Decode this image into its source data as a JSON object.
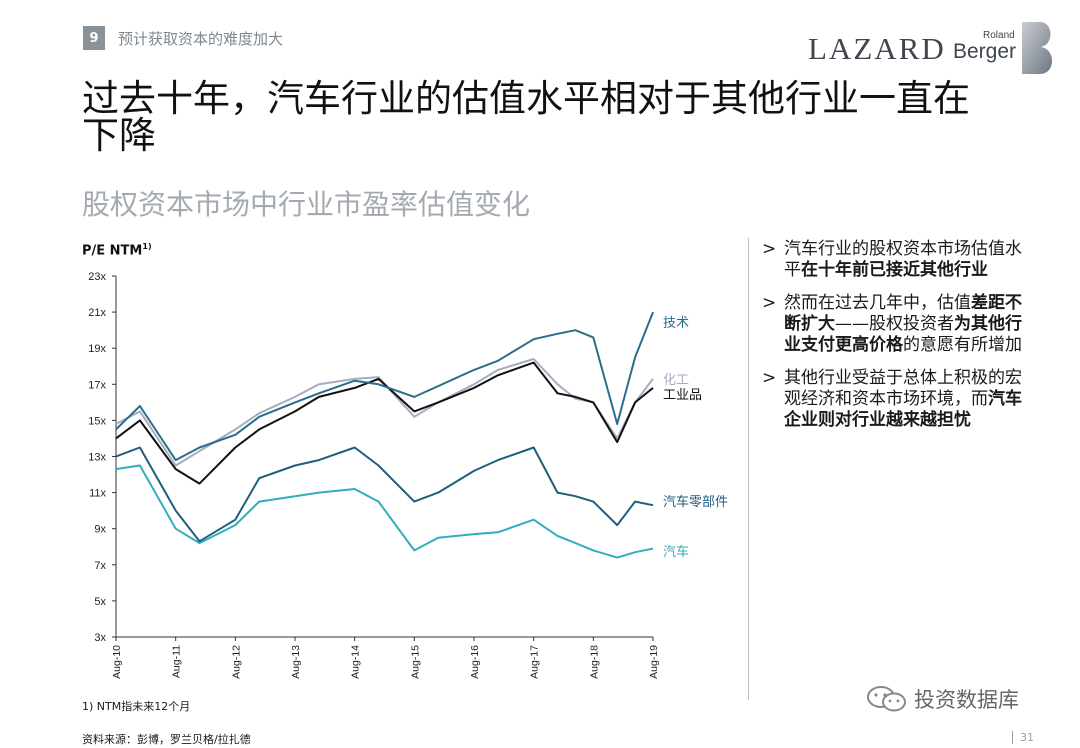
{
  "header": {
    "section_number": "9",
    "section_title": "预计获取资本的难度加大",
    "logo_lazard": "LAZARD",
    "logo_berger": "Berger",
    "logo_roland": "Roland"
  },
  "title": "过去十年，汽车行业的估值水平相对于其他行业一直在下降",
  "subtitle": "股权资本市场中行业市盈率估值变化",
  "bullets": [
    {
      "pre": "汽车行业的股权资本市场估值水平",
      "bold": "在十年前已接近其他行业",
      "post": ""
    },
    {
      "pre": "然而在过去几年中，估值",
      "bold": "差距不断扩大",
      "mid": "——股权投资者",
      "bold2": "为其他行业支付更高价格",
      "post": "的意愿有所增加"
    },
    {
      "pre": "其他行业受益于总体上积极的宏观经济和资本市场环境，而",
      "bold": "汽车企业则对行业越来越担忧",
      "post": ""
    }
  ],
  "footnote": "1) NTM指未来12个月",
  "source": "资料来源：彭博，罗兰贝格/拉扎德",
  "page_number": "31",
  "watermark": "投资数据库",
  "colors": {
    "tech": "#2d6c8b",
    "chem": "#a3aec0",
    "industrial": "#111111",
    "components": "#1f5f7e",
    "auto": "#31aebd",
    "axis": "#333333"
  },
  "chart_data": {
    "type": "line",
    "title": "",
    "ylabel": "P/E NTM",
    "ylabel_sup": "1)",
    "ylim": [
      3,
      23
    ],
    "yticks": [
      3,
      5,
      7,
      9,
      11,
      13,
      15,
      17,
      19,
      21,
      23
    ],
    "ytick_labels": [
      "3x",
      "5x",
      "7x",
      "9x",
      "11x",
      "13x",
      "15x",
      "17x",
      "19x",
      "21x",
      "23x"
    ],
    "xlabels": [
      "Aug-10",
      "Aug-11",
      "Aug-12",
      "Aug-13",
      "Aug-14",
      "Aug-15",
      "Aug-16",
      "Aug-17",
      "Aug-18",
      "Aug-19"
    ],
    "x": [
      2010.6,
      2011.0,
      2011.6,
      2012.0,
      2012.6,
      2013.0,
      2013.6,
      2014.0,
      2014.6,
      2015.0,
      2015.6,
      2016.0,
      2016.6,
      2017.0,
      2017.6,
      2018.0,
      2018.3,
      2018.6,
      2019.0,
      2019.3,
      2019.6
    ],
    "series": [
      {
        "name": "技术",
        "key": "tech",
        "values": [
          14.5,
          15.8,
          12.8,
          13.5,
          14.2,
          15.2,
          16.0,
          16.5,
          17.2,
          17.0,
          16.3,
          16.9,
          17.8,
          18.3,
          19.5,
          19.8,
          20.0,
          19.6,
          14.8,
          18.5,
          21.0
        ]
      },
      {
        "name": "化工",
        "key": "chem",
        "values": [
          14.8,
          15.5,
          12.5,
          13.3,
          14.5,
          15.4,
          16.3,
          17.0,
          17.3,
          17.4,
          15.2,
          16.0,
          17.0,
          17.8,
          18.4,
          17.0,
          16.2,
          16.0,
          14.0,
          16.0,
          17.3
        ]
      },
      {
        "name": "工业品",
        "key": "industrial",
        "values": [
          14.0,
          15.0,
          12.3,
          11.5,
          13.5,
          14.5,
          15.5,
          16.3,
          16.8,
          17.3,
          15.5,
          16.0,
          16.8,
          17.5,
          18.2,
          16.5,
          16.3,
          16.0,
          13.8,
          16.0,
          16.8
        ]
      },
      {
        "name": "汽车零部件",
        "key": "components",
        "values": [
          13.0,
          13.5,
          10.0,
          8.3,
          9.5,
          11.8,
          12.5,
          12.8,
          13.5,
          12.5,
          10.5,
          11.0,
          12.2,
          12.8,
          13.5,
          11.0,
          10.8,
          10.5,
          9.2,
          10.5,
          10.3
        ]
      },
      {
        "name": "汽车",
        "key": "auto",
        "values": [
          12.3,
          12.5,
          9.0,
          8.2,
          9.2,
          10.5,
          10.8,
          11.0,
          11.2,
          10.5,
          7.8,
          8.5,
          8.7,
          8.8,
          9.5,
          8.6,
          8.2,
          7.8,
          7.4,
          7.7,
          7.9
        ]
      }
    ]
  }
}
